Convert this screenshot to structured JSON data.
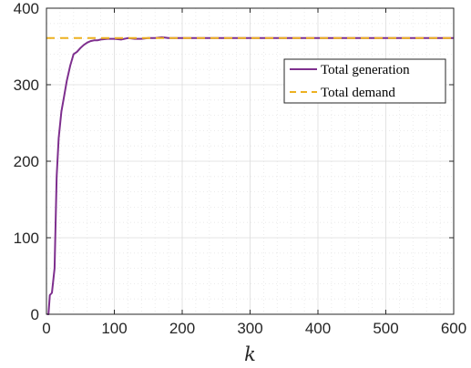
{
  "colors": {
    "generation": "#7E2F8E",
    "demand": "#EDB120",
    "major_grid": "#dcdcdc",
    "minor_grid": "#e6e6e6",
    "axis": "#262626"
  },
  "chart_data": {
    "type": "line",
    "title": "",
    "xlabel": "k",
    "ylabel": "",
    "xlim": [
      0,
      600
    ],
    "ylim": [
      0,
      400
    ],
    "xticks": [
      0,
      100,
      200,
      300,
      400,
      500,
      600
    ],
    "yticks": [
      0,
      100,
      200,
      300,
      400
    ],
    "xtick_labels": [
      "0",
      "100",
      "200",
      "300",
      "400",
      "500",
      "600"
    ],
    "ytick_labels": [
      "0",
      "100",
      "200",
      "300",
      "400"
    ],
    "grid": true,
    "minor_grid": true,
    "legend": "upper-right",
    "series": [
      {
        "name": "Total generation",
        "style": "solid",
        "x": [
          1,
          3,
          5,
          8,
          12,
          15,
          18,
          22,
          26,
          30,
          35,
          40,
          45,
          50,
          55,
          60,
          65,
          70,
          75,
          80,
          90,
          100,
          110,
          120,
          130,
          140,
          150,
          160,
          170,
          180,
          200,
          220,
          250,
          300,
          350,
          400,
          450,
          500,
          550,
          600
        ],
        "y": [
          0,
          0,
          25,
          28,
          60,
          180,
          230,
          265,
          285,
          305,
          325,
          340,
          343,
          348,
          352,
          355,
          357,
          358,
          358,
          359,
          360,
          360,
          359,
          361,
          360,
          360,
          361,
          361,
          362,
          361,
          361,
          361,
          361,
          361,
          361,
          361,
          361,
          361,
          361,
          361
        ]
      },
      {
        "name": "Total demand",
        "style": "dashed",
        "x": [
          0,
          600
        ],
        "y": [
          361,
          361
        ]
      }
    ]
  }
}
